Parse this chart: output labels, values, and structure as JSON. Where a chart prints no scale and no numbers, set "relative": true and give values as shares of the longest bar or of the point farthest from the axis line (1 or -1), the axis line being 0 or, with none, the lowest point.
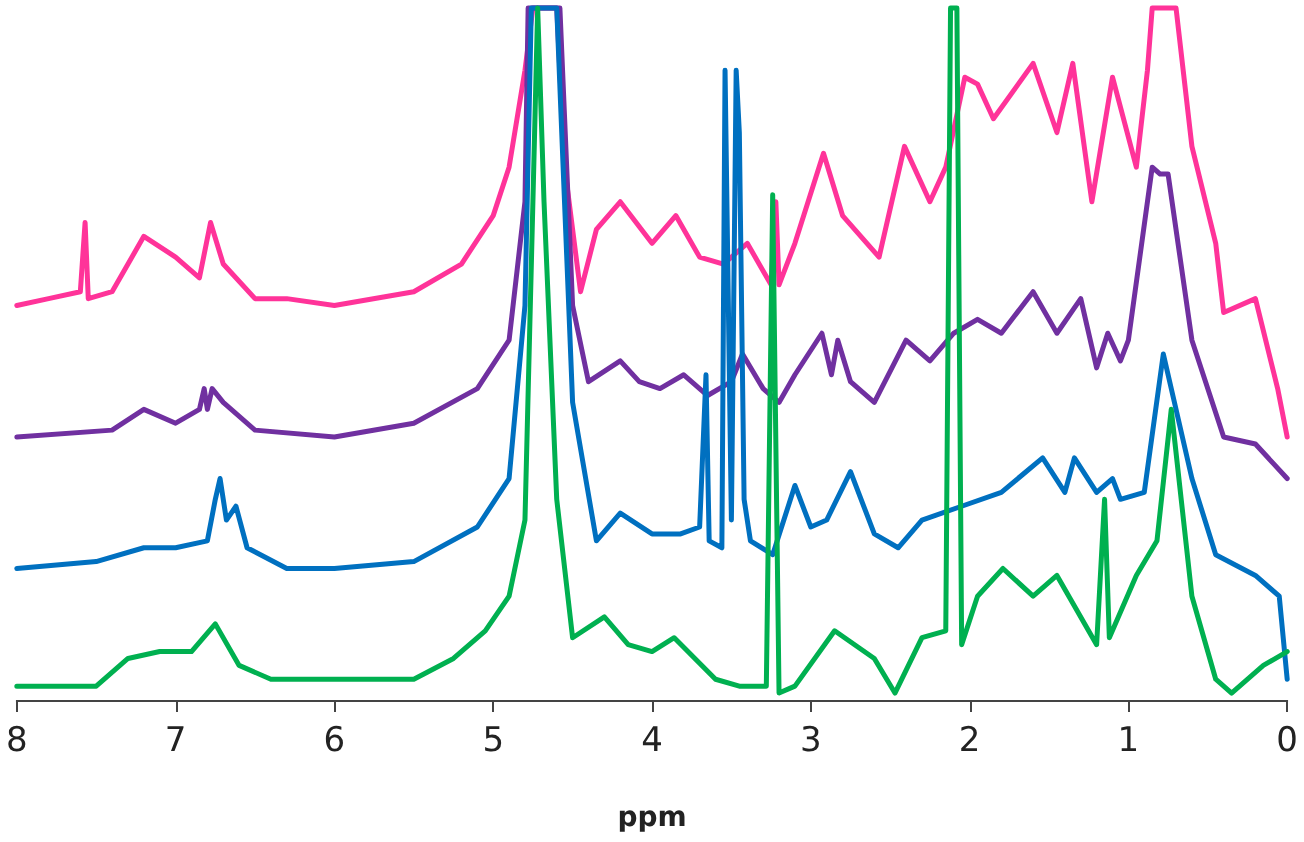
{
  "chart_data": {
    "type": "line",
    "xlabel": "ppm",
    "relative": true,
    "xlim": [
      8,
      0
    ],
    "xticks": [
      8,
      7,
      6,
      5,
      4,
      3,
      2,
      1,
      0
    ],
    "grid": false,
    "marker": "none",
    "line_style": "solid",
    "series": [
      {
        "color": "#ff3399",
        "x": [
          8.0,
          7.8,
          7.6,
          7.57,
          7.55,
          7.4,
          7.2,
          7.0,
          6.85,
          6.78,
          6.7,
          6.5,
          6.3,
          6.0,
          5.5,
          5.2,
          5.0,
          4.9,
          4.8,
          4.75,
          4.6,
          4.55,
          4.45,
          4.35,
          4.2,
          4.0,
          3.85,
          3.7,
          3.55,
          3.4,
          3.25,
          3.22,
          3.2,
          3.1,
          2.92,
          2.8,
          2.57,
          2.41,
          2.25,
          2.15,
          2.03,
          1.95,
          1.85,
          1.6,
          1.45,
          1.35,
          1.23,
          1.1,
          0.95,
          0.88,
          0.85,
          0.7,
          0.6,
          0.45,
          0.4,
          0.2,
          0.06,
          0.0
        ],
        "values": [
          0.57,
          0.58,
          0.59,
          0.69,
          0.58,
          0.59,
          0.67,
          0.64,
          0.61,
          0.69,
          0.63,
          0.58,
          0.58,
          0.57,
          0.59,
          0.63,
          0.7,
          0.77,
          0.91,
          1,
          1,
          0.77,
          0.59,
          0.68,
          0.72,
          0.66,
          0.7,
          0.64,
          0.63,
          0.66,
          0.6,
          0.72,
          0.6,
          0.66,
          0.79,
          0.7,
          0.64,
          0.8,
          0.72,
          0.77,
          0.9,
          0.89,
          0.84,
          0.92,
          0.82,
          0.92,
          0.72,
          0.9,
          0.77,
          0.91,
          1,
          1,
          0.8,
          0.66,
          0.56,
          0.58,
          0.45,
          0.38
        ]
      },
      {
        "color": "#7030a0",
        "x": [
          8.0,
          7.4,
          7.2,
          7.0,
          6.85,
          6.82,
          6.8,
          6.77,
          6.7,
          6.5,
          6.0,
          5.5,
          5.1,
          4.9,
          4.8,
          4.78,
          4.58,
          4.5,
          4.4,
          4.2,
          4.08,
          3.95,
          3.8,
          3.65,
          3.5,
          3.43,
          3.3,
          3.2,
          3.1,
          2.93,
          2.87,
          2.83,
          2.75,
          2.6,
          2.4,
          2.25,
          2.1,
          1.95,
          1.8,
          1.6,
          1.45,
          1.3,
          1.2,
          1.13,
          1.05,
          1.0,
          0.85,
          0.8,
          0.75,
          0.6,
          0.4,
          0.2,
          0.0
        ],
        "values": [
          0.38,
          0.39,
          0.42,
          0.4,
          0.42,
          0.45,
          0.42,
          0.45,
          0.43,
          0.39,
          0.38,
          0.4,
          0.45,
          0.52,
          0.72,
          1,
          1,
          0.57,
          0.46,
          0.49,
          0.46,
          0.45,
          0.47,
          0.44,
          0.46,
          0.5,
          0.45,
          0.43,
          0.47,
          0.53,
          0.47,
          0.52,
          0.46,
          0.43,
          0.52,
          0.49,
          0.53,
          0.55,
          0.53,
          0.59,
          0.53,
          0.58,
          0.48,
          0.53,
          0.49,
          0.52,
          0.77,
          0.76,
          0.76,
          0.52,
          0.38,
          0.37,
          0.32
        ]
      },
      {
        "color": "#0070c0",
        "x": [
          8.0,
          7.5,
          7.2,
          7.0,
          6.8,
          6.75,
          6.72,
          6.68,
          6.62,
          6.55,
          6.3,
          6.0,
          5.5,
          5.1,
          4.9,
          4.8,
          4.76,
          4.6,
          4.5,
          4.35,
          4.2,
          4.0,
          3.82,
          3.7,
          3.66,
          3.64,
          3.56,
          3.54,
          3.5,
          3.47,
          3.45,
          3.42,
          3.38,
          3.24,
          3.1,
          3.0,
          2.9,
          2.75,
          2.6,
          2.45,
          2.3,
          2.05,
          1.8,
          1.54,
          1.4,
          1.34,
          1.2,
          1.1,
          1.05,
          0.9,
          0.78,
          0.6,
          0.45,
          0.2,
          0.05,
          0.0
        ],
        "values": [
          0.19,
          0.2,
          0.22,
          0.22,
          0.23,
          0.29,
          0.32,
          0.26,
          0.28,
          0.22,
          0.19,
          0.19,
          0.2,
          0.25,
          0.32,
          0.57,
          1,
          1,
          0.43,
          0.23,
          0.27,
          0.24,
          0.24,
          0.25,
          0.47,
          0.23,
          0.22,
          0.91,
          0.26,
          0.91,
          0.82,
          0.29,
          0.23,
          0.21,
          0.31,
          0.25,
          0.26,
          0.33,
          0.24,
          0.22,
          0.26,
          0.28,
          0.3,
          0.35,
          0.3,
          0.35,
          0.3,
          0.32,
          0.29,
          0.3,
          0.5,
          0.32,
          0.21,
          0.18,
          0.15,
          0.03
        ]
      },
      {
        "color": "#00b050",
        "x": [
          8.0,
          7.5,
          7.3,
          7.1,
          6.9,
          6.75,
          6.6,
          6.4,
          6.0,
          5.5,
          5.25,
          5.05,
          4.9,
          4.8,
          4.75,
          4.72,
          4.68,
          4.6,
          4.5,
          4.3,
          4.15,
          4.0,
          3.86,
          3.6,
          3.45,
          3.28,
          3.24,
          3.2,
          3.1,
          2.85,
          2.6,
          2.47,
          2.3,
          2.15,
          2.12,
          2.08,
          2.05,
          1.95,
          1.79,
          1.6,
          1.45,
          1.2,
          1.15,
          1.12,
          0.95,
          0.82,
          0.73,
          0.6,
          0.45,
          0.35,
          0.15,
          0.0
        ],
        "values": [
          0.02,
          0.02,
          0.06,
          0.07,
          0.07,
          0.11,
          0.05,
          0.03,
          0.03,
          0.03,
          0.06,
          0.1,
          0.15,
          0.26,
          0.72,
          1,
          0.72,
          0.29,
          0.09,
          0.12,
          0.08,
          0.07,
          0.09,
          0.03,
          0.02,
          0.02,
          0.73,
          0.01,
          0.02,
          0.1,
          0.06,
          0.01,
          0.09,
          0.1,
          1,
          1,
          0.08,
          0.15,
          0.19,
          0.15,
          0.18,
          0.08,
          0.29,
          0.09,
          0.18,
          0.23,
          0.42,
          0.15,
          0.03,
          0.01,
          0.05,
          0.07
        ]
      }
    ]
  }
}
